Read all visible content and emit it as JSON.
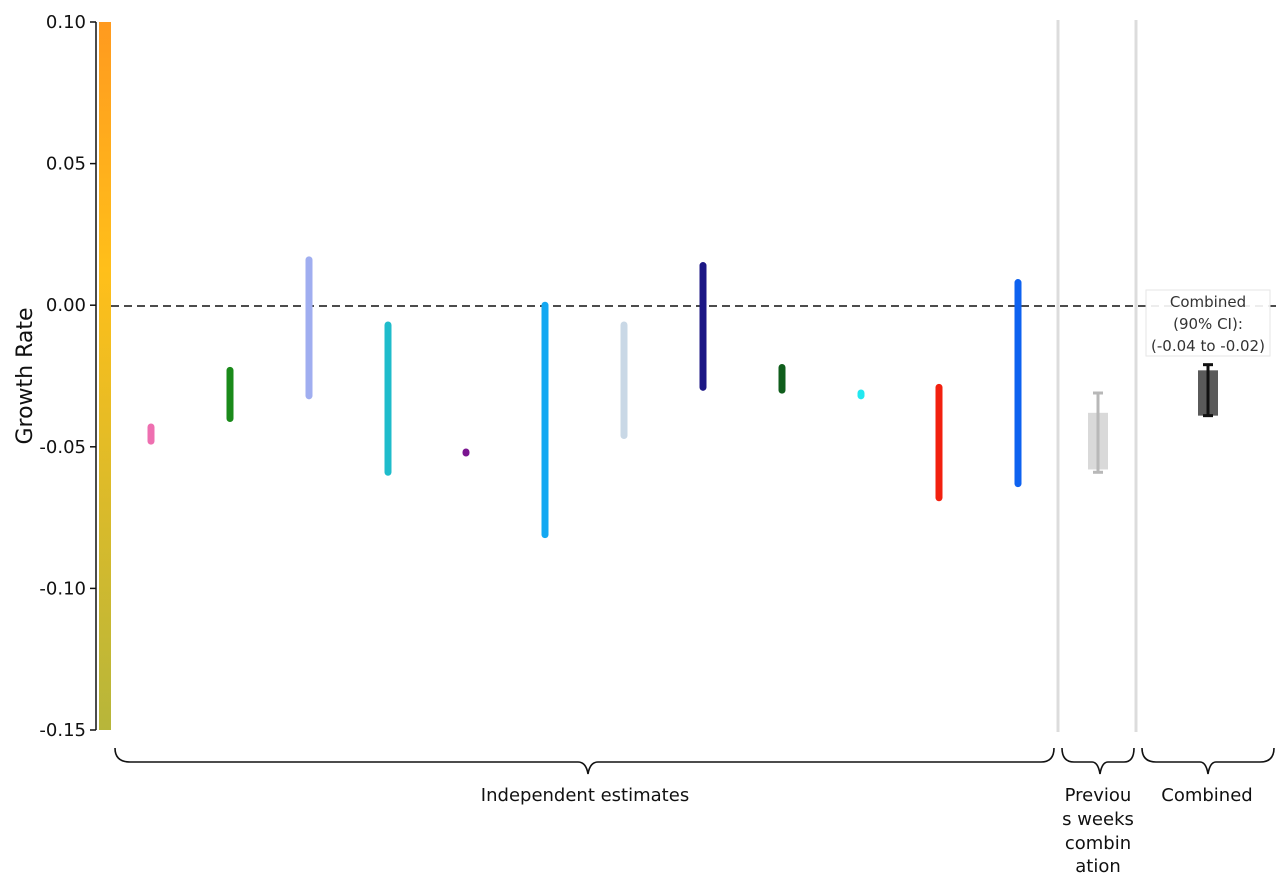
{
  "chart_data": {
    "type": "bar",
    "ylabel": "Growth Rate",
    "ylim": [
      -0.15,
      0.1
    ],
    "yticks": [
      "0.10",
      "0.05",
      "0.00",
      "-0.05",
      "-0.10",
      "-0.15"
    ],
    "ytick_values": [
      0.1,
      0.05,
      0.0,
      -0.05,
      -0.1,
      -0.15
    ],
    "reference_line": 0.0,
    "colorbar": {
      "top_color": "#ff9a1f",
      "mid_color": "#ffbf1a",
      "bottom_color": "#b7b63a"
    },
    "groups": [
      {
        "label": "Independent estimates"
      },
      {
        "label_lines": [
          "Previou",
          "s weeks",
          "combin",
          "ation"
        ]
      },
      {
        "label": "Combined"
      }
    ],
    "independent_estimates": [
      {
        "low": -0.048,
        "high": -0.043,
        "color": "#ee6fb0"
      },
      {
        "low": -0.04,
        "high": -0.023,
        "color": "#1a8a1a"
      },
      {
        "low": -0.032,
        "high": 0.016,
        "color": "#a0aef0"
      },
      {
        "low": -0.059,
        "high": -0.007,
        "color": "#1fbccb"
      },
      {
        "low": -0.052,
        "high": -0.052,
        "color": "#7a1590"
      },
      {
        "low": -0.081,
        "high": 0.0,
        "color": "#13a8f2"
      },
      {
        "low": -0.046,
        "high": -0.007,
        "color": "#c9d8e6"
      },
      {
        "low": -0.029,
        "high": 0.014,
        "color": "#1c1785"
      },
      {
        "low": -0.03,
        "high": -0.022,
        "color": "#105e1c"
      },
      {
        "low": -0.032,
        "high": -0.031,
        "color": "#22e8f0"
      },
      {
        "low": -0.068,
        "high": -0.029,
        "color": "#f2200f"
      },
      {
        "low": -0.063,
        "high": 0.008,
        "color": "#0e62f0"
      }
    ],
    "previous_weeks_combination": {
      "box_low": -0.058,
      "box_high": -0.038,
      "ci_low": -0.059,
      "ci_high": -0.031,
      "box_color": "#d9d9d9",
      "whisker_color": "#b8b8b8"
    },
    "combined": {
      "box_low": -0.039,
      "box_high": -0.023,
      "ci_low": -0.039,
      "ci_high": -0.021,
      "box_color": "#5a5a5a",
      "whisker_color": "#111111",
      "annotation": [
        "Combined",
        "(90% CI):",
        "(-0.04 to -0.02)"
      ]
    }
  }
}
